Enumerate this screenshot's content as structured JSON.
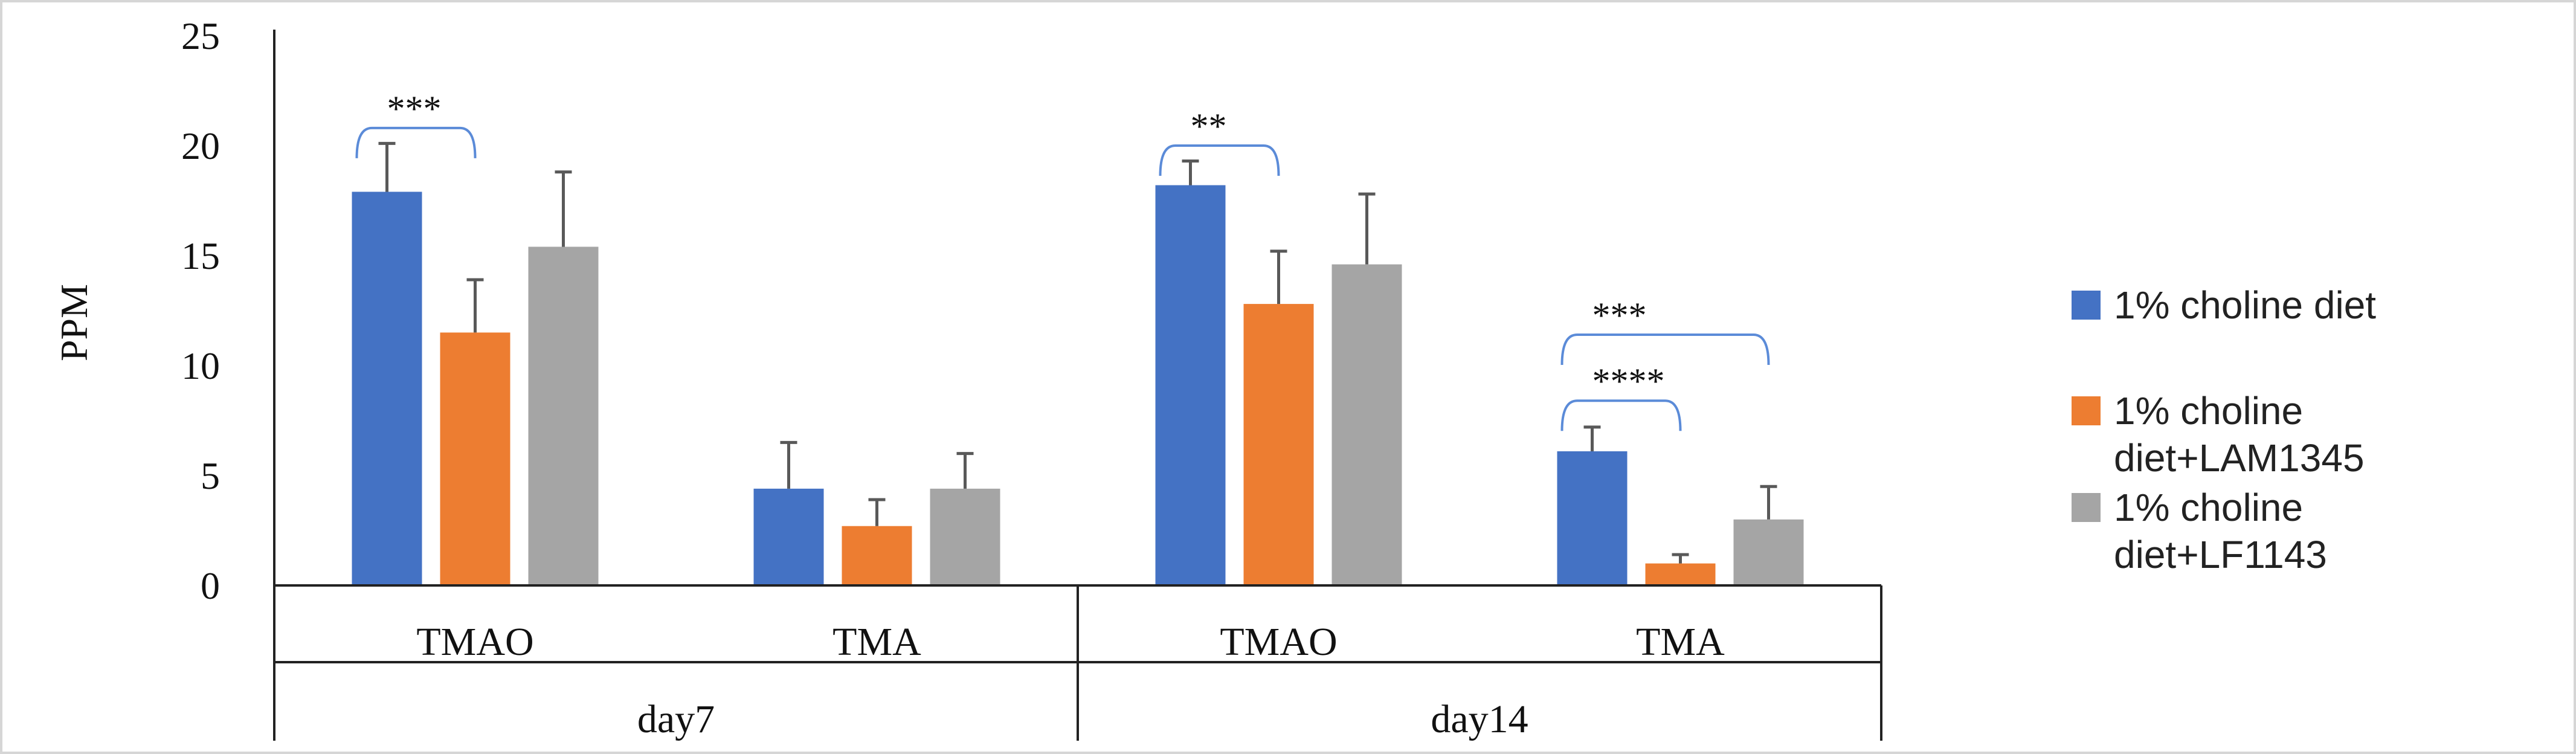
{
  "chart_data": {
    "type": "bar",
    "ylabel": "PPM",
    "ylim": [
      0,
      25
    ],
    "yticks": [
      "0",
      "5",
      "10",
      "15",
      "20",
      "25"
    ],
    "grid": false,
    "legend_position": "right",
    "groups": [
      {
        "label": "day7",
        "categories": [
          "TMAO",
          "TMA"
        ]
      },
      {
        "label": "day14",
        "categories": [
          "TMAO",
          "TMA"
        ]
      }
    ],
    "categories": [
      "TMAO",
      "TMA",
      "TMAO",
      "TMA"
    ],
    "series": [
      {
        "name": "1% choline diet",
        "color": "#4472C4",
        "values": [
          17.9,
          4.4,
          18.2,
          6.1
        ],
        "errors": [
          2.2,
          2.1,
          1.1,
          1.1
        ]
      },
      {
        "name": "1% choline diet+LAM1345",
        "color": "#ED7D31",
        "values": [
          11.5,
          2.7,
          12.8,
          1.0
        ],
        "errors": [
          2.4,
          1.2,
          2.4,
          0.4
        ]
      },
      {
        "name": "1% choline diet+LF1143",
        "color": "#A5A5A5",
        "values": [
          15.4,
          4.4,
          14.6,
          3.0
        ],
        "errors": [
          3.4,
          1.6,
          3.2,
          1.5
        ]
      }
    ],
    "annotations": [
      {
        "text": "***",
        "category_index": 0,
        "from_series": 0,
        "to_series": 1,
        "y": 20.8
      },
      {
        "text": "**",
        "category_index": 2,
        "from_series": 0,
        "to_series": 1,
        "y": 20.0
      },
      {
        "text": "****",
        "category_index": 3,
        "from_series": 0,
        "to_series": 1,
        "y": 8.4
      },
      {
        "text": "***",
        "category_index": 3,
        "from_series": 0,
        "to_series": 2,
        "y": 11.4
      }
    ]
  }
}
